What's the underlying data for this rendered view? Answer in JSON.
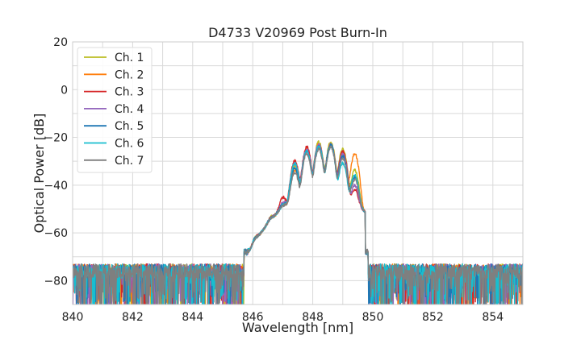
{
  "chart_data": {
    "type": "line",
    "title": "D4733 V20969 Post Burn-In",
    "xlabel": "Wavelength [nm]",
    "ylabel": "Optical Power [dB]",
    "xlim": [
      840,
      855
    ],
    "ylim": [
      -90,
      20
    ],
    "xticks": [
      840,
      842,
      844,
      846,
      848,
      850,
      852,
      854
    ],
    "yticks": [
      20,
      0,
      -20,
      -40,
      -60,
      -80
    ],
    "grid": true,
    "legend": "top-left",
    "noise_floor": -76,
    "series": [
      {
        "name": "Ch. 1",
        "color": "#bcbd22",
        "peaks": [
          [
            846.1,
            -67
          ],
          [
            846.6,
            -59
          ],
          [
            847.0,
            -53
          ],
          [
            847.4,
            -32
          ],
          [
            847.8,
            -25
          ],
          [
            848.2,
            -22
          ],
          [
            848.6,
            -22
          ],
          [
            849.0,
            -25
          ],
          [
            849.4,
            -34
          ]
        ]
      },
      {
        "name": "Ch. 2",
        "color": "#ff7f0e",
        "peaks": [
          [
            846.1,
            -68
          ],
          [
            846.6,
            -61
          ],
          [
            847.0,
            -54
          ],
          [
            847.4,
            -34
          ],
          [
            847.8,
            -25
          ],
          [
            848.2,
            -23
          ],
          [
            848.6,
            -23
          ],
          [
            849.0,
            -27
          ],
          [
            849.4,
            -27
          ]
        ]
      },
      {
        "name": "Ch. 3",
        "color": "#d62728",
        "peaks": [
          [
            846.1,
            -67
          ],
          [
            846.6,
            -60
          ],
          [
            847.0,
            -47
          ],
          [
            847.4,
            -30
          ],
          [
            847.8,
            -24
          ],
          [
            848.2,
            -23
          ],
          [
            848.6,
            -23
          ],
          [
            849.0,
            -26
          ],
          [
            849.4,
            -43
          ]
        ]
      },
      {
        "name": "Ch. 4",
        "color": "#9467bd",
        "peaks": [
          [
            846.1,
            -68
          ],
          [
            846.6,
            -60
          ],
          [
            847.0,
            -51
          ],
          [
            847.4,
            -31
          ],
          [
            847.8,
            -25
          ],
          [
            848.2,
            -23
          ],
          [
            848.6,
            -23
          ],
          [
            849.0,
            -27
          ],
          [
            849.4,
            -41
          ]
        ]
      },
      {
        "name": "Ch. 5",
        "color": "#1f77b4",
        "peaks": [
          [
            846.1,
            -67
          ],
          [
            846.6,
            -62
          ],
          [
            847.0,
            -53
          ],
          [
            847.4,
            -33
          ],
          [
            847.8,
            -26
          ],
          [
            848.2,
            -24
          ],
          [
            848.6,
            -23
          ],
          [
            849.0,
            -28
          ],
          [
            849.4,
            -37
          ]
        ]
      },
      {
        "name": "Ch. 6",
        "color": "#17becf",
        "peaks": [
          [
            846.1,
            -68
          ],
          [
            846.6,
            -61
          ],
          [
            847.0,
            -55
          ],
          [
            847.4,
            -31
          ],
          [
            847.8,
            -26
          ],
          [
            848.2,
            -24
          ],
          [
            848.6,
            -24
          ],
          [
            849.0,
            -31
          ],
          [
            849.4,
            -36
          ]
        ]
      },
      {
        "name": "Ch. 7",
        "color": "#7f7f7f",
        "peaks": [
          [
            846.1,
            -69
          ],
          [
            846.6,
            -62
          ],
          [
            847.0,
            -56
          ],
          [
            847.4,
            -35
          ],
          [
            847.8,
            -27
          ],
          [
            848.2,
            -25
          ],
          [
            848.6,
            -24
          ],
          [
            849.0,
            -29
          ],
          [
            849.4,
            -38
          ]
        ]
      }
    ]
  }
}
